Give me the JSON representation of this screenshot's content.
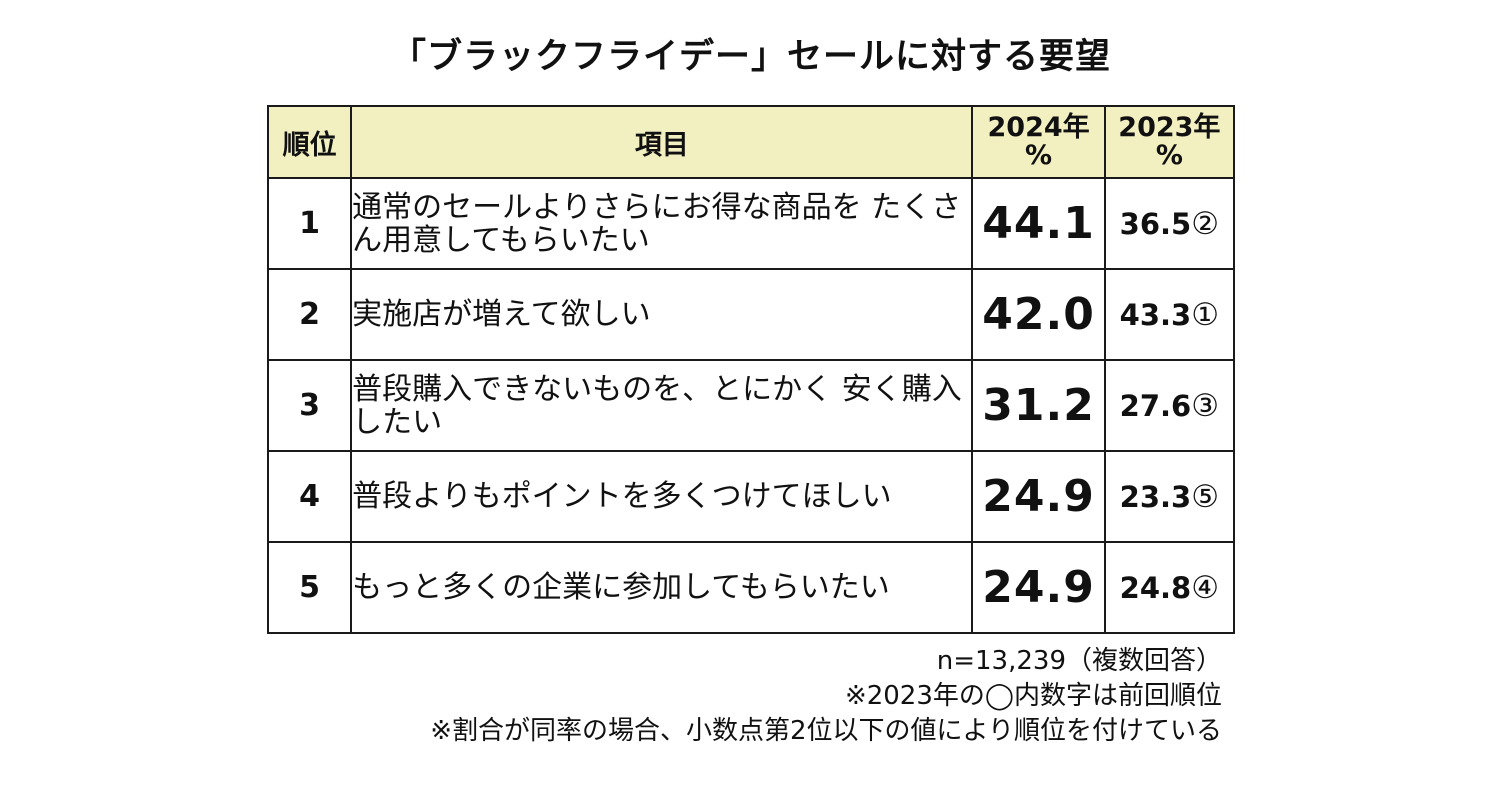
{
  "title": "「ブラックフライデー」セールに対する要望",
  "table": {
    "headers": {
      "rank": "順位",
      "item": "項目",
      "y2024_year": "2024年",
      "y2024_unit": "%",
      "y2023_year": "2023年",
      "y2023_unit": "%"
    },
    "rows": [
      {
        "rank": "1",
        "item": "通常のセールよりさらにお得な商品を たくさん用意してもらいたい",
        "v2024": "44.1",
        "v2023": "36.5",
        "prev_rank": "②"
      },
      {
        "rank": "2",
        "item": "実施店が増えて欲しい",
        "v2024": "42.0",
        "v2023": "43.3",
        "prev_rank": "①"
      },
      {
        "rank": "3",
        "item": "普段購入できないものを、とにかく 安く購入したい",
        "v2024": "31.2",
        "v2023": "27.6",
        "prev_rank": "③"
      },
      {
        "rank": "4",
        "item": "普段よりもポイントを多くつけてほしい",
        "v2024": "24.9",
        "v2023": "23.3",
        "prev_rank": "⑤"
      },
      {
        "rank": "5",
        "item": "もっと多くの企業に参加してもらいたい",
        "v2024": "24.9",
        "v2023": "24.8",
        "prev_rank": "④"
      }
    ]
  },
  "notes": [
    "n=13,239（複数回答）",
    "※2023年の◯内数字は前回順位",
    "※割合が同率の場合、小数点第2位以下の値により順位を付けている"
  ],
  "colors": {
    "header_bg": "#f2f0c0",
    "border": "#1a1a1a"
  },
  "chart_data": {
    "type": "table",
    "title": "「ブラックフライデー」セールに対する要望",
    "columns": [
      "順位",
      "項目",
      "2024年 %",
      "2023年 %"
    ],
    "rows": [
      [
        "1",
        "通常のセールよりさらにお得な商品をたくさん用意してもらいたい",
        44.1,
        "36.5②"
      ],
      [
        "2",
        "実施店が増えて欲しい",
        42.0,
        "43.3①"
      ],
      [
        "3",
        "普段購入できないものを、とにかく安く購入したい",
        31.2,
        "27.6③"
      ],
      [
        "4",
        "普段よりもポイントを多くつけてほしい",
        24.9,
        "23.3⑤"
      ],
      [
        "5",
        "もっと多くの企業に参加してもらいたい",
        24.9,
        "24.8④"
      ]
    ]
  }
}
